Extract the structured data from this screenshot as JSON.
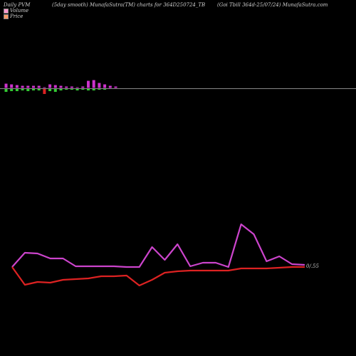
{
  "header": {
    "left": "Daily PVM",
    "center": "(5day smooth) MunafaSutra(TM) charts for 364D250724_TB",
    "right": "(Goi  Tbill 364d-25/07/24) MunafaSutra.com"
  },
  "legend": [
    {
      "label": "Volume",
      "color": "#ff99cc"
    },
    {
      "label": "Price",
      "color": "#ff9966"
    }
  ],
  "chart_data": [
    {
      "type": "bar",
      "panel": "volume",
      "reference_line": "grey baseline",
      "up_color": "#cc33cc",
      "down_color_small": "#33cc33",
      "down_color_large": "#dd2222",
      "upper_values": [
        6,
        5,
        4,
        3,
        3,
        3,
        3,
        1,
        5,
        4,
        3,
        2,
        2,
        1,
        2,
        10,
        11,
        7,
        5,
        3,
        2
      ],
      "lower_values": [
        4,
        3,
        3,
        2,
        3,
        2,
        2,
        7,
        3,
        4,
        2,
        1,
        1,
        2,
        1,
        2,
        2,
        1,
        1,
        0,
        0
      ],
      "lower_color": [
        "g",
        "g",
        "g",
        "g",
        "g",
        "g",
        "g",
        "r",
        "g",
        "g",
        "g",
        "g",
        "g",
        "g",
        "g",
        "g",
        "g",
        "g",
        "g",
        "g",
        "g"
      ]
    },
    {
      "type": "line",
      "panel": "price",
      "series": [
        {
          "color": "#cc44cc",
          "values": [
            375,
            355,
            356,
            363,
            363,
            374,
            374,
            374,
            374,
            375,
            375,
            347,
            365,
            343,
            374,
            369,
            369,
            375,
            315,
            329,
            367,
            360,
            371,
            372
          ]
        },
        {
          "color": "#dd2222",
          "values": [
            375,
            400,
            396,
            397,
            393,
            392,
            391,
            388,
            388,
            387,
            401,
            393,
            383,
            381,
            380,
            380,
            380,
            380,
            377,
            377,
            377,
            376,
            375,
            375
          ]
        }
      ],
      "end_label": "0/.55"
    }
  ]
}
